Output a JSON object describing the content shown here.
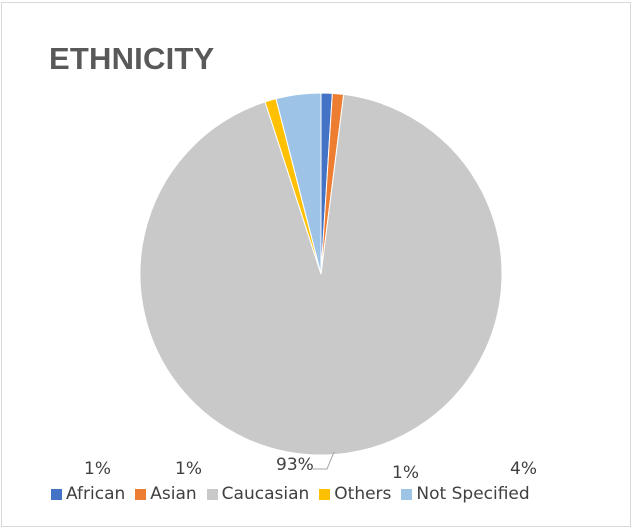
{
  "chart_data": {
    "type": "pie",
    "title": "ETHNICITY",
    "categories": [
      "African",
      "Asian",
      "Caucasian",
      "Others",
      "Not Specified"
    ],
    "values": [
      1,
      1,
      93,
      1,
      4
    ],
    "labels": [
      "1%",
      "1%",
      "93%",
      "1%",
      "4%"
    ],
    "colors": [
      "#4472c4",
      "#ed7d31",
      "#c9c9c9",
      "#ffc000",
      "#9dc3e6"
    ],
    "legend_position": "bottom"
  }
}
